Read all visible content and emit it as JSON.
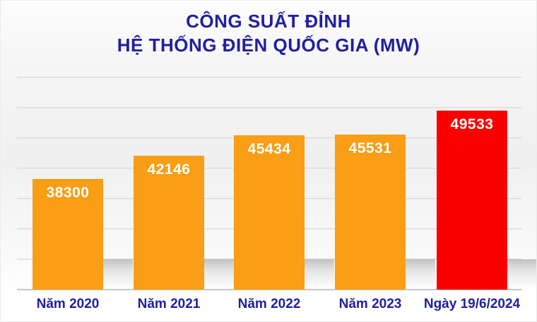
{
  "title": {
    "line1": "CÔNG SUẤT ĐỈNH",
    "line2": "HỆ THỐNG ĐIỆN QUỐC GIA (MW)"
  },
  "colors": {
    "title_text": "#20209f",
    "axis_label_text": "#20209f",
    "value_label_text": "#ffffff",
    "gridline": "#d2d2d2",
    "baseline": "#c6c6c6",
    "orange_bar": "#f99e15",
    "red_bar": "#fc0000"
  },
  "chart_data": {
    "type": "bar",
    "title": "CÔNG SUẤT ĐỈNH HỆ THỐNG ĐIỆN QUỐC GIA (MW)",
    "categories": [
      "Năm 2020",
      "Năm 2021",
      "Năm 2022",
      "Năm 2023",
      "Ngày 19/6/2024"
    ],
    "values": [
      38300,
      42146,
      45434,
      45531,
      49533
    ],
    "data_labels": [
      "38300",
      "42146",
      "45434",
      "45531",
      "49533"
    ],
    "bar_colors": [
      "#f99e15",
      "#f99e15",
      "#f99e15",
      "#f99e15",
      "#fc0000"
    ],
    "xlabel": "",
    "ylabel": "",
    "unit": "MW",
    "ylim": [
      20000,
      55000
    ],
    "gridline_step": 5000,
    "grid": "horizontal",
    "y_tick_labels_visible": false,
    "legend": "none"
  }
}
